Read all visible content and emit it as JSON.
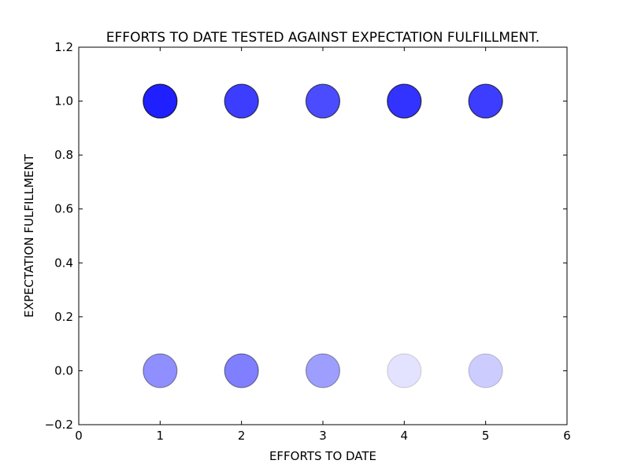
{
  "chart_data": {
    "type": "scatter",
    "title": "EFFORTS TO DATE TESTED AGAINST EXPECTATION FULFILLMENT.",
    "xlabel": "EFFORTS TO DATE",
    "ylabel": "EXPECTATION FULFILLMENT",
    "xlim": [
      0,
      6
    ],
    "ylim": [
      -0.2,
      1.2
    ],
    "xticks": [
      "0",
      "1",
      "2",
      "3",
      "4",
      "5",
      "6"
    ],
    "yticks": [
      "−0.2",
      "0.0",
      "0.2",
      "0.4",
      "0.6",
      "0.8",
      "1.0",
      "1.2"
    ],
    "xtick_values": [
      0,
      1,
      2,
      3,
      4,
      5,
      6
    ],
    "ytick_values": [
      -0.2,
      0,
      0.2,
      0.4,
      0.6,
      0.8,
      1.0,
      1.2
    ],
    "grid": false,
    "marker_color": "#0000ff",
    "points": [
      {
        "x": 1,
        "y": 1,
        "opacity": 0.88
      },
      {
        "x": 2,
        "y": 1,
        "opacity": 0.76
      },
      {
        "x": 3,
        "y": 1,
        "opacity": 0.7
      },
      {
        "x": 4,
        "y": 1,
        "opacity": 0.8
      },
      {
        "x": 5,
        "y": 1,
        "opacity": 0.76
      },
      {
        "x": 1,
        "y": 0,
        "opacity": 0.44
      },
      {
        "x": 2,
        "y": 0,
        "opacity": 0.5
      },
      {
        "x": 3,
        "y": 0,
        "opacity": 0.38
      },
      {
        "x": 4,
        "y": 0,
        "opacity": 0.11
      },
      {
        "x": 5,
        "y": 0,
        "opacity": 0.2
      }
    ]
  }
}
